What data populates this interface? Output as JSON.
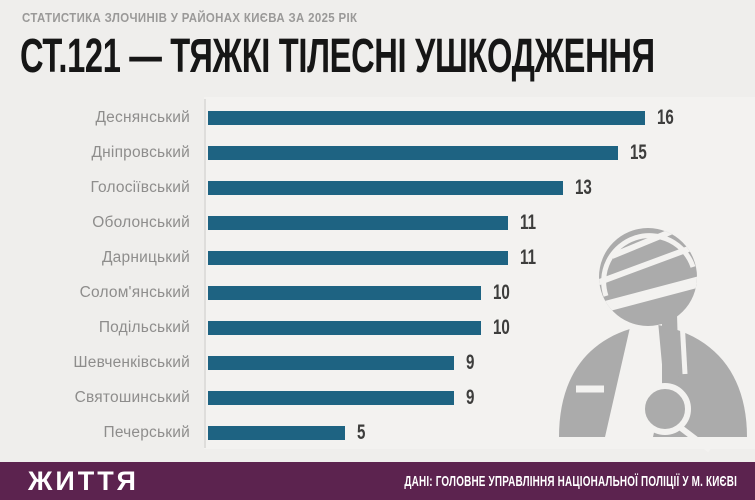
{
  "header": {
    "kicker": "СТАТИСТИКА ЗЛОЧИНІВ У РАЙОНАХ КИЄВА ЗА 2025 РІК",
    "title": "СТ.121 — ТЯЖКІ ТІЛЕСНІ УШКОДЖЕННЯ"
  },
  "chart_data": {
    "type": "bar",
    "orientation": "horizontal",
    "title": "СТ.121 — ТЯЖКІ ТІЛЕСНІ УШКОДЖЕННЯ",
    "categories": [
      "Деснянський",
      "Дніпровський",
      "Голосіївський",
      "Оболонський",
      "Дарницький",
      "Солом'янський",
      "Подільський",
      "Шевченківський",
      "Святошинський",
      "Печерський"
    ],
    "values": [
      16,
      15,
      13,
      11,
      11,
      10,
      10,
      9,
      9,
      5
    ],
    "xlim": [
      0,
      16
    ],
    "grid": false,
    "value_labels": true,
    "legend": "none",
    "bar_color": "#1e6382"
  },
  "icons": {
    "figure": "injured-person-icon"
  },
  "footer": {
    "brand": "ЖИТТЯ",
    "source": "ДАНІ: ГОЛОВНЕ УПРАВЛІННЯ НАЦІОНАЛЬНОЇ ПОЛІЦІЇ У М. КИЄВІ"
  },
  "colors": {
    "background": "#efeeec",
    "plot_background": "#f3f2f0",
    "bar": "#1e6382",
    "category_label": "#8e8d8c",
    "value_label": "#3d3d3c",
    "title": "#161616",
    "kicker": "#9a9998",
    "footer_background": "#5c234f",
    "footer_text": "#ffffff",
    "figure_gray": "#ababab",
    "axis_line": "#dedddb"
  }
}
